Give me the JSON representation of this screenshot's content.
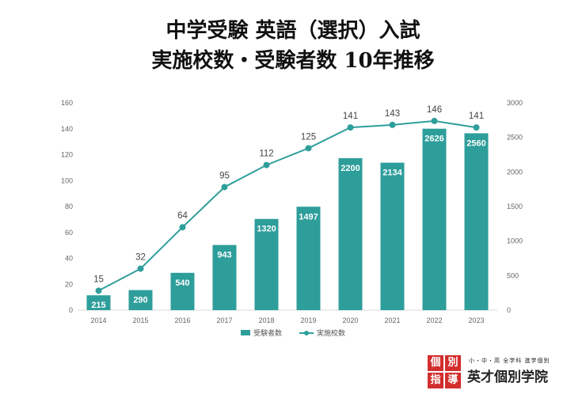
{
  "title_line1": "中学受験 英語（選択）入試",
  "title_line2": "実施校数・受験者数 10年推移",
  "chart_data": {
    "type": "bar",
    "categories": [
      "2014",
      "2015",
      "2016",
      "2017",
      "2018",
      "2019",
      "2020",
      "2021",
      "2022",
      "2023"
    ],
    "series": [
      {
        "name": "受験者数",
        "type": "bar",
        "axis": "right",
        "values": [
          215,
          290,
          540,
          943,
          1320,
          1497,
          2200,
          2134,
          2626,
          2560
        ]
      },
      {
        "name": "実施校数",
        "type": "line",
        "axis": "left",
        "values": [
          15,
          32,
          64,
          95,
          112,
          125,
          141,
          143,
          146,
          141
        ]
      }
    ],
    "ylim_left": [
      0,
      160
    ],
    "yticks_left": [
      0,
      20,
      40,
      60,
      80,
      100,
      120,
      140,
      160
    ],
    "ylim_right": [
      0,
      3000
    ],
    "yticks_right": [
      0,
      500,
      1000,
      1500,
      2000,
      2500,
      3000
    ],
    "legend_position": "bottom",
    "grid": false,
    "color": "#2e9e9b"
  },
  "legend": {
    "bar_label": "受験者数",
    "line_label": "実施校数"
  },
  "logo": {
    "mark": [
      "個",
      "別",
      "指",
      "導"
    ],
    "tagline": "小・中・高 全学科 進学個別",
    "name": "英才個別学院",
    "color": "#d32d2d"
  }
}
